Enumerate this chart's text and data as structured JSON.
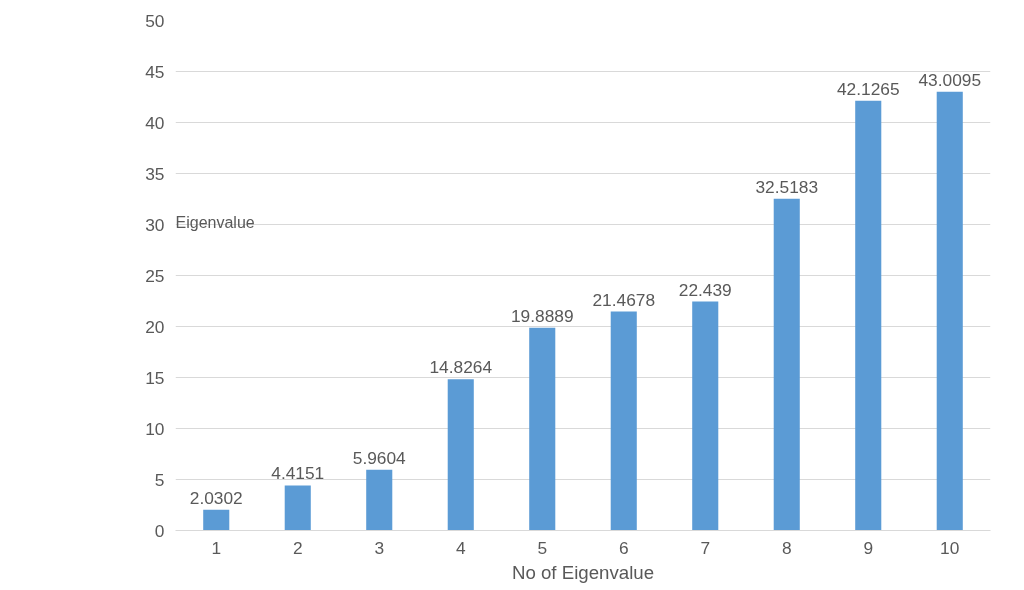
{
  "chart_data": {
    "type": "bar",
    "xlabel": "No of Eigenvalue",
    "ylabel": "Eigenvalue",
    "categories": [
      "1",
      "2",
      "3",
      "4",
      "5",
      "6",
      "7",
      "8",
      "9",
      "10"
    ],
    "values": [
      2.0302,
      4.4151,
      5.9604,
      14.8264,
      19.8889,
      21.4678,
      22.439,
      32.5183,
      42.1265,
      43.0095
    ],
    "color": "#5b9bd5",
    "ylim": [
      0,
      50
    ],
    "yticks": [
      0,
      5,
      10,
      15,
      20,
      25,
      30,
      35,
      40,
      45,
      50
    ],
    "grid": "y",
    "data_labels": true
  }
}
